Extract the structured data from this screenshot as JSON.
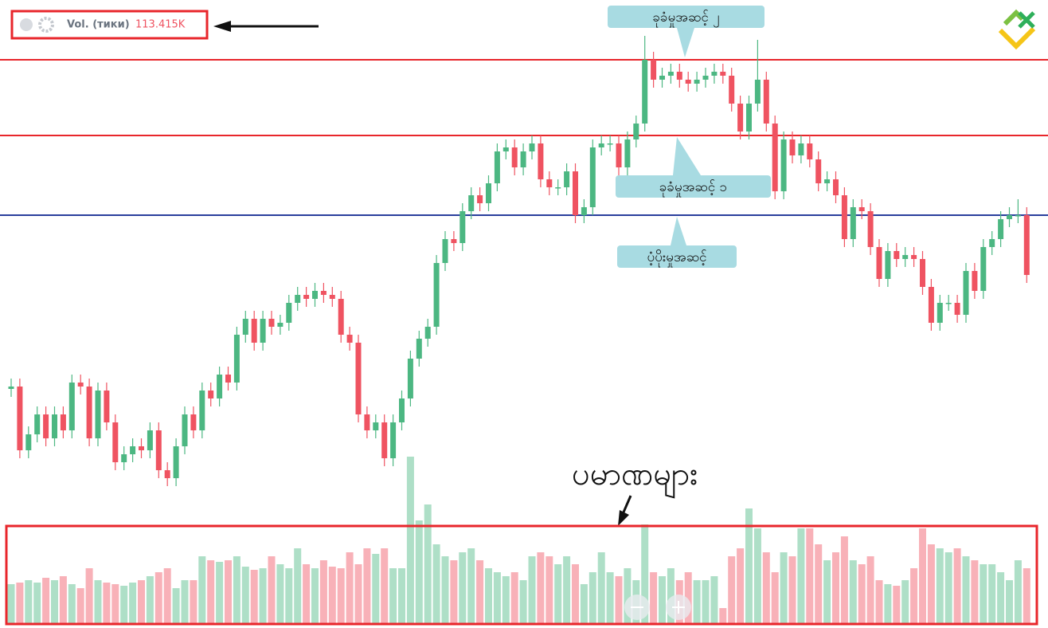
{
  "chart_data": {
    "type": "candlestick",
    "indicator": {
      "name": "Vol. (тики)",
      "value": "113.415K"
    },
    "volume_label": "ပမာဏများ",
    "up_color": "#4cb782",
    "down_color": "#ef5361",
    "volume_opacity": 0.45,
    "ylim": [
      0,
      788
    ],
    "vlim": [
      0,
      788
    ],
    "levels": [
      {
        "label": "ခုခံမှုအဆင့် ၂",
        "value": 713,
        "color": "#e8262b"
      },
      {
        "label": "ခုခံမှုအဆင့် ၁",
        "value": 618,
        "color": "#e8262b"
      },
      {
        "label": "ပံ့ပိုးမှုအဆင့်",
        "value": 518,
        "color": "#2a3f9d"
      }
    ],
    "open": [
      300,
      303,
      223,
      243,
      268,
      238,
      268,
      248,
      308,
      303,
      238,
      298,
      258,
      208,
      218,
      228,
      223,
      248,
      198,
      188,
      228,
      268,
      248,
      298,
      288,
      318,
      308,
      368,
      388,
      358,
      388,
      378,
      383,
      408,
      418,
      413,
      423,
      418,
      413,
      368,
      358,
      268,
      248,
      258,
      213,
      258,
      288,
      338,
      363,
      378,
      458,
      488,
      483,
      523,
      543,
      533,
      558,
      598,
      603,
      578,
      598,
      608,
      563,
      553,
      553,
      573,
      518,
      528,
      603,
      608,
      608,
      578,
      613,
      633,
      713,
      688,
      693,
      698,
      688,
      683,
      688,
      693,
      698,
      693,
      658,
      623,
      658,
      688,
      633,
      548,
      613,
      593,
      608,
      588,
      558,
      563,
      543,
      488,
      528,
      523,
      478,
      438,
      473,
      463,
      468,
      463,
      428,
      383,
      408,
      408,
      393,
      448,
      423,
      478,
      488,
      513,
      518,
      518
    ],
    "high": [
      313,
      313,
      253,
      278,
      278,
      278,
      278,
      318,
      318,
      313,
      308,
      308,
      268,
      228,
      238,
      238,
      258,
      258,
      208,
      238,
      278,
      278,
      308,
      308,
      328,
      328,
      378,
      398,
      398,
      398,
      398,
      393,
      418,
      428,
      428,
      433,
      433,
      428,
      423,
      378,
      368,
      278,
      268,
      268,
      268,
      298,
      348,
      373,
      388,
      468,
      498,
      498,
      533,
      553,
      553,
      568,
      608,
      613,
      613,
      608,
      618,
      618,
      573,
      563,
      583,
      583,
      538,
      613,
      618,
      618,
      618,
      623,
      643,
      743,
      723,
      703,
      708,
      708,
      698,
      698,
      703,
      708,
      708,
      703,
      668,
      668,
      738,
      698,
      643,
      623,
      623,
      618,
      618,
      598,
      573,
      573,
      553,
      538,
      538,
      533,
      488,
      483,
      483,
      478,
      478,
      473,
      438,
      418,
      418,
      418,
      458,
      458,
      488,
      498,
      523,
      528,
      538,
      528
    ],
    "low": [
      290,
      213,
      213,
      233,
      228,
      228,
      238,
      238,
      293,
      228,
      228,
      248,
      198,
      198,
      208,
      213,
      213,
      188,
      178,
      178,
      218,
      238,
      238,
      278,
      278,
      298,
      298,
      358,
      348,
      348,
      368,
      368,
      373,
      398,
      403,
      403,
      408,
      403,
      358,
      348,
      258,
      238,
      238,
      203,
      203,
      248,
      278,
      328,
      353,
      368,
      448,
      473,
      473,
      513,
      523,
      523,
      548,
      588,
      568,
      568,
      588,
      553,
      543,
      543,
      543,
      508,
      508,
      518,
      593,
      598,
      568,
      568,
      603,
      623,
      678,
      678,
      683,
      678,
      673,
      673,
      678,
      683,
      683,
      648,
      613,
      613,
      648,
      623,
      538,
      538,
      583,
      583,
      578,
      548,
      548,
      533,
      478,
      478,
      513,
      468,
      428,
      428,
      453,
      453,
      453,
      418,
      373,
      373,
      398,
      383,
      383,
      413,
      413,
      468,
      478,
      503,
      508,
      433
    ],
    "close": [
      303,
      223,
      243,
      268,
      238,
      268,
      248,
      308,
      303,
      238,
      298,
      258,
      208,
      218,
      228,
      223,
      248,
      198,
      188,
      228,
      268,
      248,
      298,
      288,
      318,
      308,
      368,
      388,
      358,
      388,
      378,
      383,
      408,
      418,
      413,
      423,
      418,
      413,
      368,
      358,
      268,
      248,
      258,
      213,
      258,
      288,
      338,
      363,
      378,
      458,
      488,
      483,
      523,
      543,
      533,
      558,
      598,
      603,
      578,
      598,
      608,
      563,
      553,
      553,
      573,
      518,
      528,
      603,
      608,
      608,
      578,
      613,
      633,
      713,
      688,
      693,
      698,
      688,
      683,
      688,
      693,
      698,
      693,
      658,
      623,
      658,
      688,
      633,
      548,
      613,
      593,
      608,
      588,
      558,
      563,
      543,
      488,
      528,
      523,
      478,
      438,
      473,
      463,
      468,
      463,
      428,
      383,
      408,
      408,
      393,
      448,
      423,
      478,
      488,
      513,
      518,
      518,
      443
    ],
    "volume": [
      50,
      52,
      55,
      52,
      58,
      55,
      60,
      50,
      45,
      70,
      55,
      52,
      50,
      48,
      52,
      55,
      60,
      65,
      70,
      45,
      55,
      55,
      85,
      80,
      78,
      80,
      85,
      72,
      68,
      70,
      85,
      75,
      70,
      95,
      75,
      70,
      80,
      72,
      70,
      90,
      75,
      95,
      88,
      95,
      70,
      70,
      210,
      130,
      150,
      100,
      85,
      80,
      90,
      95,
      80,
      70,
      65,
      60,
      65,
      55,
      85,
      90,
      85,
      75,
      85,
      75,
      50,
      65,
      90,
      65,
      60,
      70,
      55,
      125,
      65,
      60,
      70,
      55,
      65,
      55,
      55,
      60,
      20,
      85,
      95,
      145,
      120,
      90,
      65,
      90,
      85,
      120,
      120,
      100,
      80,
      90,
      110,
      80,
      75,
      85,
      55,
      50,
      48,
      55,
      70,
      120,
      100,
      95,
      90,
      95,
      85,
      80,
      75,
      75,
      65,
      55,
      80,
      70
    ]
  }
}
